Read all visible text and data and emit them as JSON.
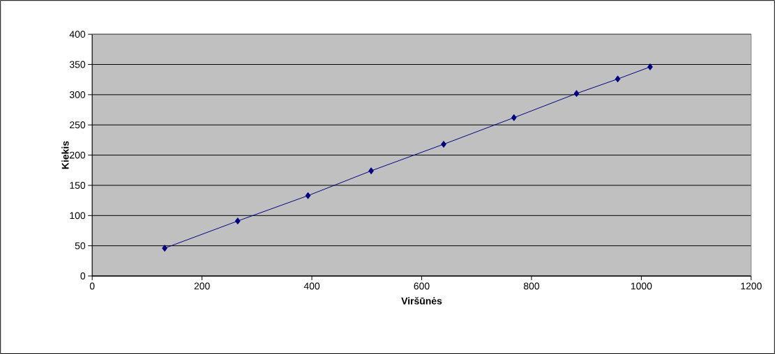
{
  "chart_data": {
    "type": "line",
    "xlabel": "Viršūnės",
    "ylabel": "Kiekis",
    "x": [
      132,
      265,
      393,
      508,
      640,
      768,
      882,
      957,
      1016
    ],
    "series": [
      {
        "color": "#000080",
        "values": [
          46,
          91,
          133,
          174,
          218,
          262,
          302,
          326,
          346
        ]
      }
    ],
    "xlim": [
      0,
      1200
    ],
    "ylim": [
      0,
      400
    ],
    "xticks": [
      0,
      200,
      400,
      600,
      800,
      1000,
      1200
    ],
    "yticks": [
      0,
      50,
      100,
      150,
      200,
      250,
      300,
      350,
      400
    ],
    "grid": "y",
    "marker": "diamond",
    "line_style": "solid"
  }
}
